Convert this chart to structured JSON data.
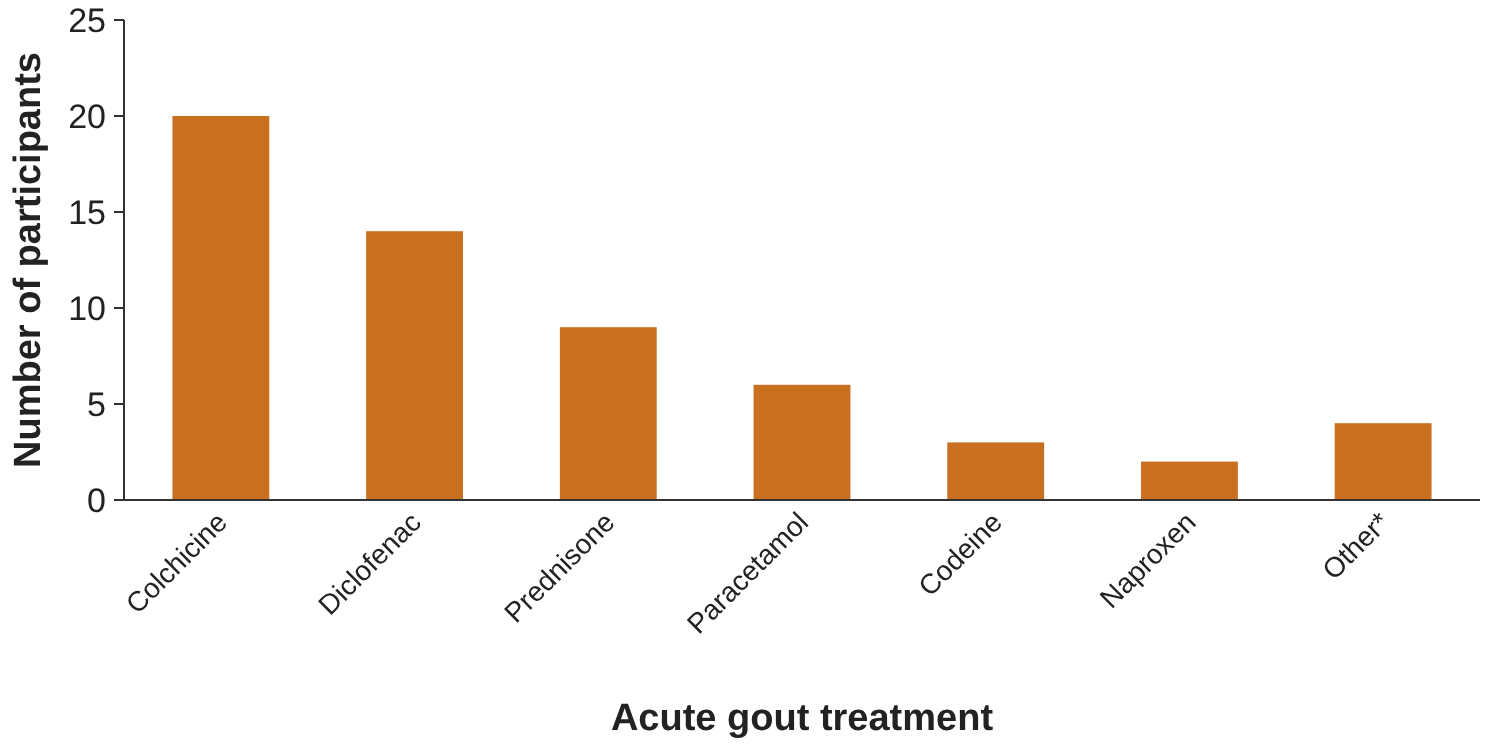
{
  "chart_data": {
    "type": "bar",
    "xlabel": "Acute gout treatment",
    "ylabel": "Number of participants",
    "categories": [
      "Colchicine",
      "Diclofenac",
      "Prednisone",
      "Paracetamol",
      "Codeine",
      "Naproxen",
      "Other*"
    ],
    "values": [
      20,
      14,
      9,
      6,
      3,
      2,
      4
    ],
    "color": "#c8701f",
    "ylim": [
      0,
      25
    ],
    "yticks": [
      0,
      5,
      10,
      15,
      20,
      25
    ],
    "grid": false
  }
}
